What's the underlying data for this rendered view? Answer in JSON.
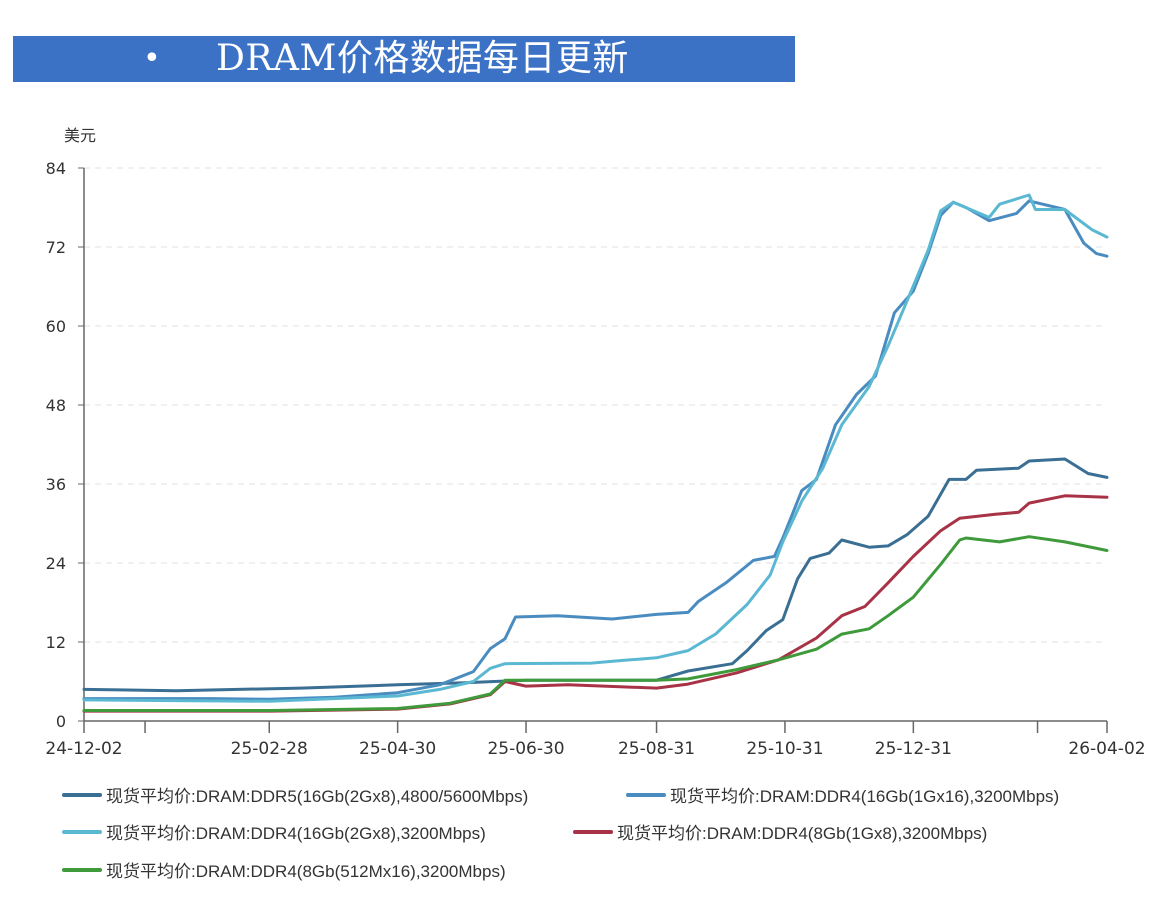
{
  "banner": {
    "bullet": "•",
    "title": "DRAM价格数据每日更新",
    "color": "#3b72c6"
  },
  "chart_data": {
    "type": "line",
    "ylabel": "美元",
    "ylim": [
      0,
      84
    ],
    "yticks": [
      0,
      12,
      24,
      36,
      48,
      60,
      72,
      84
    ],
    "xlim": [
      "2024-12-02",
      "2026-04-02"
    ],
    "xticks": [
      {
        "date": "2024-12-02",
        "label": "24-12-02"
      },
      {
        "date": "2024-12-31",
        "label": ""
      },
      {
        "date": "2025-02-28",
        "label": "25-02-28"
      },
      {
        "date": "2025-04-30",
        "label": "25-04-30"
      },
      {
        "date": "2025-06-30",
        "label": "25-06-30"
      },
      {
        "date": "2025-08-31",
        "label": "25-08-31"
      },
      {
        "date": "2025-10-31",
        "label": "25-10-31"
      },
      {
        "date": "2025-12-31",
        "label": "25-12-31"
      },
      {
        "date": "2026-02-28",
        "label": ""
      },
      {
        "date": "2026-04-02",
        "label": "26-04-02"
      }
    ],
    "grid": "horizontal dashed",
    "legend": "bottom",
    "series": [
      {
        "name": "现货平均价:DRAM:DDR5(16Gb(2Gx8),4800/5600Mbps)",
        "color": "#3a6f93",
        "points": [
          [
            "2024-12-02",
            4.8
          ],
          [
            "2025-01-15",
            4.6
          ],
          [
            "2025-03-15",
            5.0
          ],
          [
            "2025-04-30",
            5.5
          ],
          [
            "2025-06-01",
            5.8
          ],
          [
            "2025-06-30",
            6.2
          ],
          [
            "2025-08-31",
            6.2
          ],
          [
            "2025-09-15",
            7.6
          ],
          [
            "2025-10-06",
            8.7
          ],
          [
            "2025-10-13",
            10.7
          ],
          [
            "2025-10-22",
            13.7
          ],
          [
            "2025-10-30",
            15.4
          ],
          [
            "2025-11-06",
            21.6
          ],
          [
            "2025-11-12",
            24.7
          ],
          [
            "2025-11-21",
            25.5
          ],
          [
            "2025-11-27",
            27.5
          ],
          [
            "2025-12-10",
            26.4
          ],
          [
            "2025-12-19",
            26.6
          ],
          [
            "2025-12-28",
            28.3
          ],
          [
            "2026-01-07",
            31.1
          ],
          [
            "2026-01-17",
            36.7
          ],
          [
            "2026-01-25",
            36.7
          ],
          [
            "2026-01-30",
            38.1
          ],
          [
            "2026-02-19",
            38.4
          ],
          [
            "2026-02-24",
            39.5
          ],
          [
            "2026-03-13",
            39.8
          ],
          [
            "2026-03-24",
            37.6
          ],
          [
            "2026-04-02",
            37.0
          ]
        ]
      },
      {
        "name": "现货平均价:DRAM:DDR4(16Gb(1Gx16),3200Mbps)",
        "color": "#4a8cc0",
        "points": [
          [
            "2024-12-02",
            3.4
          ],
          [
            "2025-01-31",
            3.4
          ],
          [
            "2025-02-28",
            3.3
          ],
          [
            "2025-03-31",
            3.6
          ],
          [
            "2025-04-30",
            4.3
          ],
          [
            "2025-05-20",
            5.5
          ],
          [
            "2025-06-05",
            7.5
          ],
          [
            "2025-06-13",
            11.0
          ],
          [
            "2025-06-20",
            12.5
          ],
          [
            "2025-06-25",
            15.8
          ],
          [
            "2025-07-15",
            16.0
          ],
          [
            "2025-08-10",
            15.5
          ],
          [
            "2025-08-31",
            16.2
          ],
          [
            "2025-09-15",
            16.5
          ],
          [
            "2025-09-20",
            18.2
          ],
          [
            "2025-10-03",
            21.0
          ],
          [
            "2025-10-16",
            24.4
          ],
          [
            "2025-10-26",
            25.0
          ],
          [
            "2025-10-30",
            27.8
          ],
          [
            "2025-11-08",
            35.0
          ],
          [
            "2025-11-15",
            36.7
          ],
          [
            "2025-11-24",
            45.0
          ],
          [
            "2025-12-04",
            49.6
          ],
          [
            "2025-12-13",
            52.4
          ],
          [
            "2025-12-22",
            62.0
          ],
          [
            "2025-12-31",
            65.3
          ],
          [
            "2026-01-07",
            71.0
          ],
          [
            "2026-01-13",
            76.8
          ],
          [
            "2026-01-19",
            78.8
          ],
          [
            "2026-01-25",
            78.0
          ],
          [
            "2026-02-05",
            76.0
          ],
          [
            "2026-02-18",
            77.1
          ],
          [
            "2026-02-24",
            79.0
          ],
          [
            "2026-03-13",
            77.7
          ],
          [
            "2026-03-22",
            72.6
          ],
          [
            "2026-03-28",
            71.0
          ],
          [
            "2026-04-02",
            70.6
          ]
        ]
      },
      {
        "name": "现货平均价:DRAM:DDR4(16Gb(2Gx8),3200Mbps)",
        "color": "#5bb8d2",
        "points": [
          [
            "2024-12-02",
            3.2
          ],
          [
            "2025-02-28",
            3.0
          ],
          [
            "2025-04-30",
            3.8
          ],
          [
            "2025-05-20",
            4.8
          ],
          [
            "2025-06-05",
            6.0
          ],
          [
            "2025-06-13",
            8.0
          ],
          [
            "2025-06-20",
            8.7
          ],
          [
            "2025-07-31",
            8.8
          ],
          [
            "2025-08-15",
            9.2
          ],
          [
            "2025-08-31",
            9.6
          ],
          [
            "2025-09-15",
            10.7
          ],
          [
            "2025-09-28",
            13.2
          ],
          [
            "2025-10-13",
            17.7
          ],
          [
            "2025-10-24",
            22.2
          ],
          [
            "2025-10-30",
            27.2
          ],
          [
            "2025-11-08",
            33.4
          ],
          [
            "2025-11-18",
            38.4
          ],
          [
            "2025-11-27",
            45.0
          ],
          [
            "2025-12-10",
            50.8
          ],
          [
            "2025-12-19",
            57.0
          ],
          [
            "2025-12-30",
            65.3
          ],
          [
            "2026-01-07",
            71.5
          ],
          [
            "2026-01-13",
            77.5
          ],
          [
            "2026-01-19",
            78.8
          ],
          [
            "2026-02-05",
            76.5
          ],
          [
            "2026-02-10",
            78.5
          ],
          [
            "2026-02-24",
            79.9
          ],
          [
            "2026-02-27",
            77.7
          ],
          [
            "2026-03-13",
            77.7
          ],
          [
            "2026-03-26",
            74.6
          ],
          [
            "2026-04-02",
            73.5
          ]
        ]
      },
      {
        "name": "现货平均价:DRAM:DDR4(8Gb(1Gx8),3200Mbps)",
        "color": "#a83246",
        "points": [
          [
            "2024-12-02",
            1.5
          ],
          [
            "2025-03-01",
            1.5
          ],
          [
            "2025-04-30",
            1.8
          ],
          [
            "2025-05-25",
            2.6
          ],
          [
            "2025-06-13",
            4.0
          ],
          [
            "2025-06-20",
            6.0
          ],
          [
            "2025-06-30",
            5.3
          ],
          [
            "2025-07-20",
            5.5
          ],
          [
            "2025-08-31",
            5.0
          ],
          [
            "2025-09-15",
            5.6
          ],
          [
            "2025-10-08",
            7.3
          ],
          [
            "2025-10-28",
            9.3
          ],
          [
            "2025-11-15",
            12.6
          ],
          [
            "2025-11-27",
            16.0
          ],
          [
            "2025-12-08",
            17.4
          ],
          [
            "2025-12-19",
            21.0
          ],
          [
            "2025-12-31",
            25.0
          ],
          [
            "2026-01-13",
            28.9
          ],
          [
            "2026-01-22",
            30.8
          ],
          [
            "2026-02-08",
            31.4
          ],
          [
            "2026-02-19",
            31.7
          ],
          [
            "2026-02-24",
            33.1
          ],
          [
            "2026-03-13",
            34.2
          ],
          [
            "2026-04-02",
            34.0
          ]
        ]
      },
      {
        "name": "现货平均价:DRAM:DDR4(8Gb(512Mx16),3200Mbps)",
        "color": "#3e9a3a",
        "points": [
          [
            "2024-12-02",
            1.6
          ],
          [
            "2025-03-01",
            1.6
          ],
          [
            "2025-04-30",
            1.9
          ],
          [
            "2025-05-25",
            2.7
          ],
          [
            "2025-06-13",
            4.1
          ],
          [
            "2025-06-20",
            6.2
          ],
          [
            "2025-07-31",
            6.2
          ],
          [
            "2025-08-31",
            6.2
          ],
          [
            "2025-09-15",
            6.4
          ],
          [
            "2025-10-08",
            7.8
          ],
          [
            "2025-10-28",
            9.3
          ],
          [
            "2025-11-15",
            10.9
          ],
          [
            "2025-11-27",
            13.2
          ],
          [
            "2025-12-10",
            14.0
          ],
          [
            "2025-12-19",
            16.0
          ],
          [
            "2025-12-31",
            18.8
          ],
          [
            "2026-01-13",
            23.8
          ],
          [
            "2026-01-22",
            27.5
          ],
          [
            "2026-01-25",
            27.8
          ],
          [
            "2026-02-10",
            27.2
          ],
          [
            "2026-02-24",
            28.0
          ],
          [
            "2026-03-13",
            27.2
          ],
          [
            "2026-04-02",
            25.9
          ]
        ]
      }
    ]
  }
}
